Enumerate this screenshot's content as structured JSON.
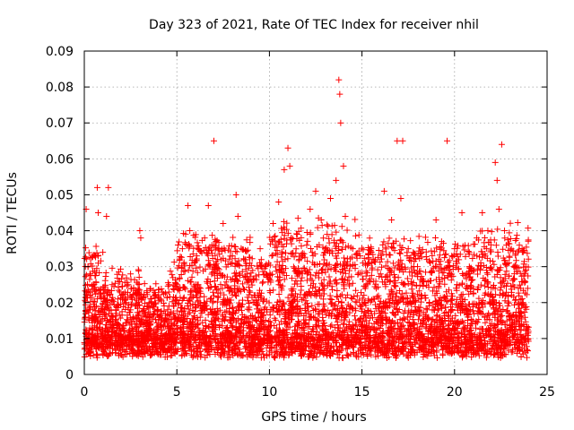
{
  "chart_data": {
    "type": "scatter",
    "title": "Day 323 of 2021, Rate Of TEC Index for receiver nhil",
    "xlabel": "GPS time / hours",
    "ylabel": "ROTI / TECUs",
    "xlim": [
      0,
      25
    ],
    "ylim": [
      0,
      0.09
    ],
    "xticks": [
      0,
      5,
      10,
      15,
      20,
      25
    ],
    "yticks": [
      0,
      0.01,
      0.02,
      0.03,
      0.04,
      0.05,
      0.06,
      0.07,
      0.08,
      0.09
    ],
    "xtick_labels": [
      "0",
      "5",
      "10",
      "15",
      "20",
      "25"
    ],
    "ytick_labels": [
      "0",
      "0.01",
      "0.02",
      "0.03",
      "0.04",
      "0.05",
      "0.06",
      "0.07",
      "0.08",
      "0.09"
    ],
    "grid": true,
    "marker": "+",
    "series_color": "#ff0000",
    "series": [
      {
        "name": "ROTI",
        "points": [
          [
            0.1,
            0.046
          ],
          [
            0.2,
            0.03
          ],
          [
            0.3,
            0.028
          ],
          [
            0.5,
            0.025
          ],
          [
            0.7,
            0.052
          ],
          [
            0.75,
            0.045
          ],
          [
            1.0,
            0.034
          ],
          [
            1.2,
            0.044
          ],
          [
            1.3,
            0.052
          ],
          [
            1.5,
            0.025
          ],
          [
            2.0,
            0.022
          ],
          [
            2.5,
            0.028
          ],
          [
            3.0,
            0.04
          ],
          [
            3.05,
            0.038
          ],
          [
            3.5,
            0.02
          ],
          [
            4.5,
            0.018
          ],
          [
            5.0,
            0.025
          ],
          [
            5.3,
            0.035
          ],
          [
            5.6,
            0.047
          ],
          [
            5.7,
            0.04
          ],
          [
            6.2,
            0.035
          ],
          [
            6.5,
            0.038
          ],
          [
            6.7,
            0.047
          ],
          [
            7.0,
            0.065
          ],
          [
            7.2,
            0.032
          ],
          [
            7.5,
            0.042
          ],
          [
            8.0,
            0.033
          ],
          [
            8.2,
            0.05
          ],
          [
            8.3,
            0.044
          ],
          [
            8.8,
            0.028
          ],
          [
            9.5,
            0.035
          ],
          [
            9.8,
            0.03
          ],
          [
            10.2,
            0.042
          ],
          [
            10.5,
            0.048
          ],
          [
            10.8,
            0.057
          ],
          [
            11.0,
            0.063
          ],
          [
            11.1,
            0.058
          ],
          [
            11.5,
            0.039
          ],
          [
            11.8,
            0.033
          ],
          [
            12.2,
            0.046
          ],
          [
            12.5,
            0.051
          ],
          [
            12.8,
            0.043
          ],
          [
            13.0,
            0.034
          ],
          [
            13.3,
            0.049
          ],
          [
            13.6,
            0.054
          ],
          [
            13.75,
            0.082
          ],
          [
            13.8,
            0.078
          ],
          [
            13.85,
            0.07
          ],
          [
            14.0,
            0.058
          ],
          [
            14.1,
            0.044
          ],
          [
            14.5,
            0.035
          ],
          [
            14.9,
            0.033
          ],
          [
            15.5,
            0.035
          ],
          [
            16.0,
            0.028
          ],
          [
            16.2,
            0.051
          ],
          [
            16.6,
            0.043
          ],
          [
            16.9,
            0.065
          ],
          [
            17.2,
            0.065
          ],
          [
            17.1,
            0.049
          ],
          [
            17.5,
            0.035
          ],
          [
            18.0,
            0.03
          ],
          [
            18.5,
            0.032
          ],
          [
            19.0,
            0.043
          ],
          [
            19.3,
            0.037
          ],
          [
            19.6,
            0.065
          ],
          [
            20.0,
            0.035
          ],
          [
            20.4,
            0.045
          ],
          [
            20.8,
            0.03
          ],
          [
            21.2,
            0.038
          ],
          [
            21.5,
            0.045
          ],
          [
            21.8,
            0.04
          ],
          [
            22.2,
            0.059
          ],
          [
            22.3,
            0.054
          ],
          [
            22.4,
            0.046
          ],
          [
            22.55,
            0.064
          ],
          [
            22.7,
            0.04
          ],
          [
            23.2,
            0.03
          ],
          [
            23.5,
            0.036
          ],
          [
            23.8,
            0.028
          ]
        ]
      }
    ]
  }
}
